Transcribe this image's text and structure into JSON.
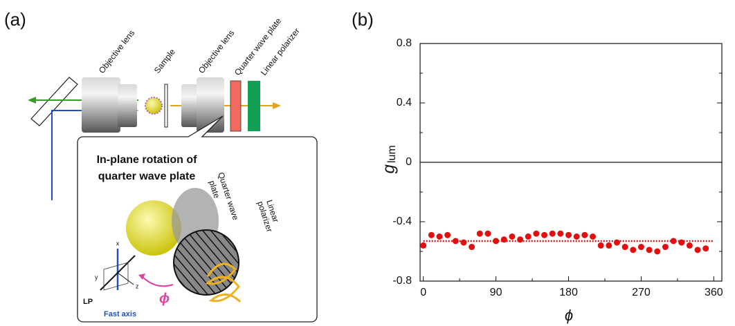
{
  "panels": [
    "(a)",
    "(b)"
  ],
  "diagram": {
    "labels": [
      "Objective lens",
      "Sample",
      "Objective lens",
      "Quarter wave plate",
      "Linear polarizer"
    ],
    "inset_title": [
      "In-plane rotation of",
      "quarter wave plate"
    ],
    "inset_labels": [
      "Quarter wave",
      "plate",
      "Linear",
      "polarizer"
    ],
    "axes": [
      "x",
      "y",
      "z"
    ],
    "lp": "LP",
    "fast_axis": "Fast axis",
    "phi": "ϕ"
  },
  "chart_data": {
    "type": "scatter",
    "x_label": "ϕ",
    "y_label": "g",
    "y_label_sub": "lum",
    "x": [
      0,
      10,
      20,
      30,
      40,
      50,
      60,
      70,
      80,
      90,
      100,
      110,
      120,
      130,
      140,
      150,
      160,
      170,
      180,
      190,
      200,
      210,
      220,
      230,
      240,
      250,
      260,
      270,
      280,
      290,
      300,
      310,
      320,
      330,
      340,
      350
    ],
    "series": [
      {
        "color": "#e01010",
        "values": [
          -0.56,
          -0.49,
          -0.5,
          -0.49,
          -0.53,
          -0.54,
          -0.57,
          -0.48,
          -0.48,
          -0.53,
          -0.52,
          -0.5,
          -0.52,
          -0.5,
          -0.48,
          -0.49,
          -0.48,
          -0.48,
          -0.49,
          -0.5,
          -0.49,
          -0.5,
          -0.56,
          -0.56,
          -0.54,
          -0.57,
          -0.59,
          -0.57,
          -0.59,
          -0.6,
          -0.57,
          -0.53,
          -0.54,
          -0.56,
          -0.59,
          -0.58
        ]
      }
    ],
    "mean_line": {
      "value": -0.53,
      "color": "#d01010"
    },
    "zero_line": true,
    "xlim": [
      -4,
      370
    ],
    "ylim": [
      -0.8,
      0.8
    ],
    "xticks": [
      0,
      90,
      180,
      270,
      360
    ],
    "yticks": [
      -0.8,
      -0.4,
      0,
      0.4,
      0.8
    ],
    "xminorticks": [
      45,
      135,
      225,
      315
    ],
    "yminorticks": [
      -0.6,
      -0.2,
      0.2,
      0.6
    ]
  }
}
